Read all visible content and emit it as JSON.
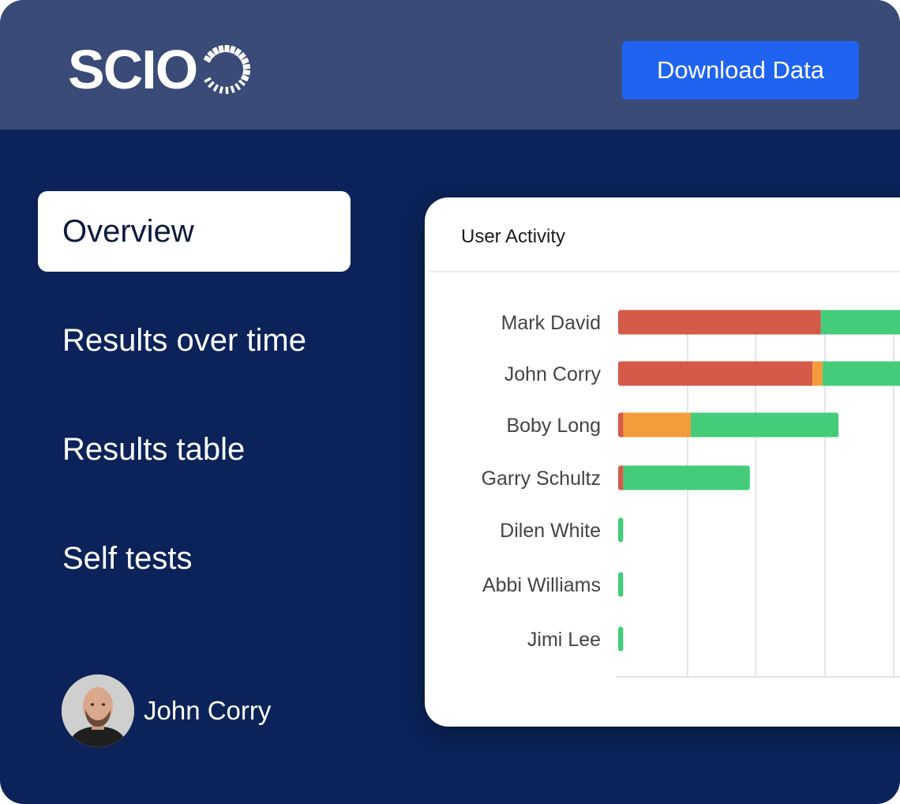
{
  "header": {
    "logo_text": "SCIO",
    "download_label": "Download Data",
    "colors": {
      "bar": "#3a4b78",
      "button": "#1f63f0"
    }
  },
  "nav": {
    "items": [
      {
        "label": "Overview",
        "active": true
      },
      {
        "label": "Results over time",
        "active": false
      },
      {
        "label": "Results table",
        "active": false
      },
      {
        "label": "Self tests",
        "active": false
      }
    ]
  },
  "user": {
    "name": "John Corry"
  },
  "card": {
    "title": "User Activity"
  },
  "chart_data": {
    "type": "bar",
    "orientation": "horizontal",
    "stacked": true,
    "categories": [
      "Mark David",
      "John Corry",
      "Boby Long",
      "Garry Schultz",
      "Dilen White",
      "Abbi Williams",
      "Jimi Lee"
    ],
    "series": [
      {
        "color": "#d45a4a",
        "values": [
          24,
          23,
          0.6,
          0.6,
          0,
          0,
          0
        ]
      },
      {
        "color": "#f39c3c",
        "values": [
          0,
          1.2,
          8,
          0,
          0,
          0,
          0
        ]
      },
      {
        "color": "#44cc7a",
        "values": [
          16,
          16,
          17.5,
          15,
          0.6,
          0.6,
          0.6
        ]
      }
    ],
    "grid": true,
    "xlim": [
      0,
      40
    ],
    "xlabel": "",
    "ylabel": ""
  }
}
